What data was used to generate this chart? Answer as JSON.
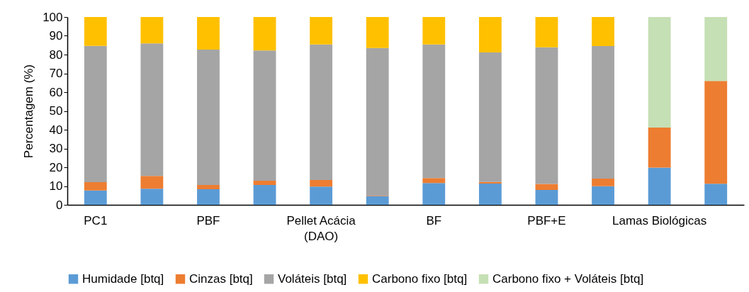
{
  "chart_data": {
    "type": "bar",
    "stacked": true,
    "ylabel": "Percentagem (%)",
    "categories": [
      "PC1",
      null,
      "PBF",
      null,
      "Pellet Acácia (DAO)",
      null,
      "BF",
      null,
      "PBF+E",
      null,
      "Lamas Biológicas",
      null
    ],
    "series": [
      {
        "name": "Humidade [btq]",
        "color": "#5b9bd5",
        "values": [
          7.6,
          8.6,
          8.3,
          10.6,
          9.7,
          4.5,
          11.6,
          11.3,
          7.9,
          9.9,
          19.8,
          11.2
        ]
      },
      {
        "name": "Cinzas [btq]",
        "color": "#ed7d31",
        "values": [
          4.5,
          6.8,
          2.3,
          2.2,
          3.5,
          0.3,
          2.6,
          0.9,
          3.2,
          4.1,
          21.3,
          54.7
        ]
      },
      {
        "name": "Voláteis [btq]",
        "color": "#a5a5a5",
        "values": [
          72.5,
          70.5,
          72.0,
          69.4,
          72.2,
          78.7,
          71.2,
          68.9,
          72.8,
          70.5,
          null,
          null
        ]
      },
      {
        "name": "Carbono fixo [btq]",
        "color": "#ffc000",
        "values": [
          15.4,
          14.1,
          17.4,
          17.8,
          14.6,
          16.5,
          14.6,
          18.9,
          16.1,
          15.5,
          null,
          null
        ]
      },
      {
        "name": "Carbono fixo + Voláteis [btq]",
        "color": "#c5e0b4",
        "values": [
          null,
          null,
          null,
          null,
          null,
          null,
          null,
          null,
          null,
          null,
          58.9,
          34.1
        ]
      }
    ],
    "ylim": [
      0,
      100
    ],
    "yticks": [
      0,
      10,
      20,
      30,
      40,
      50,
      60,
      70,
      80,
      90,
      100
    ],
    "grid": false,
    "legend": "bottom"
  }
}
